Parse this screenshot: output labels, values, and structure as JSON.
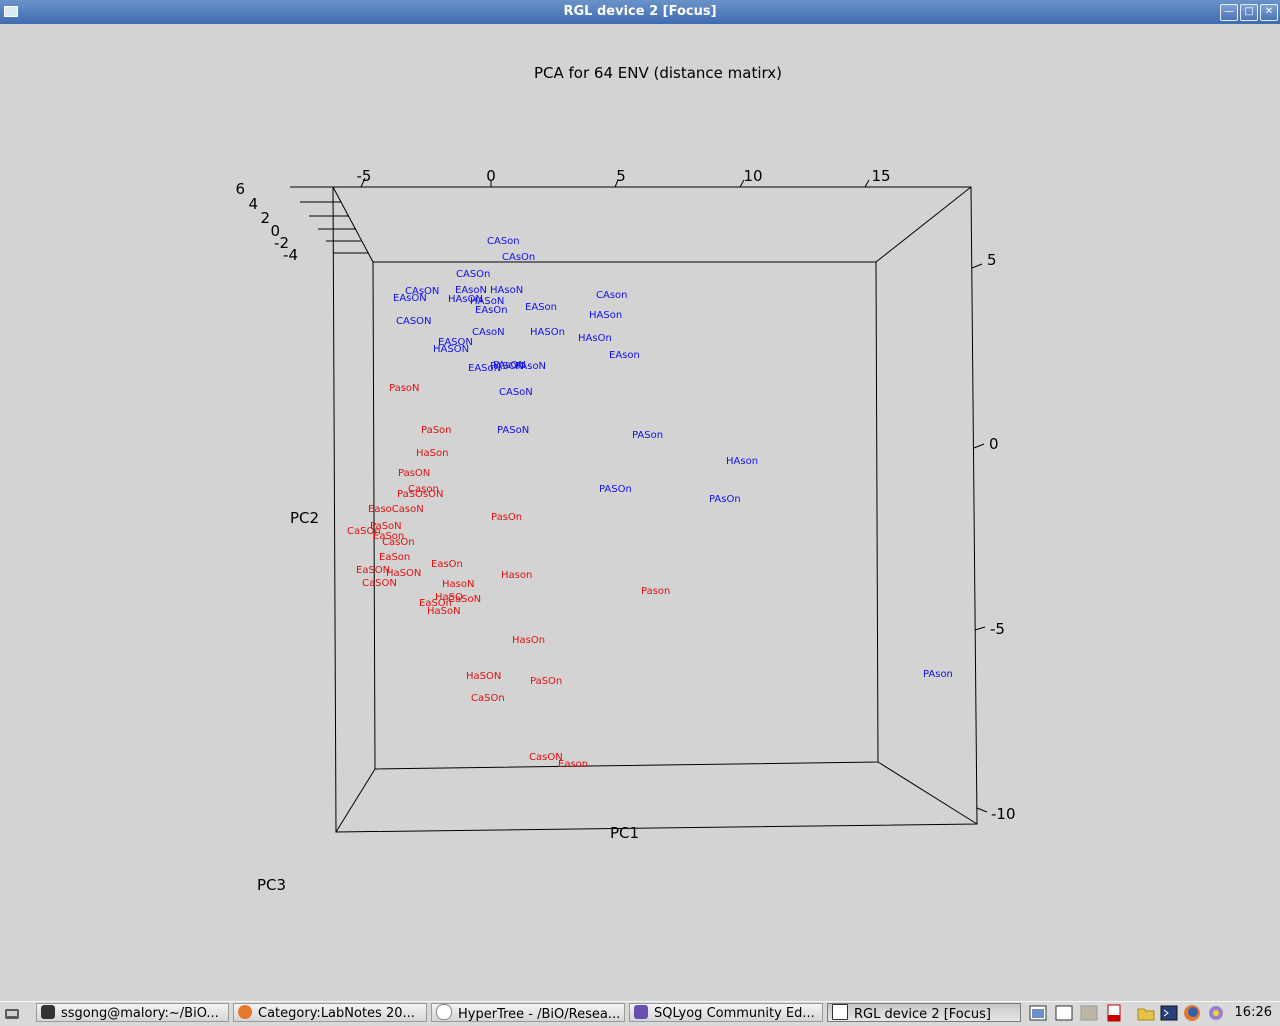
{
  "window": {
    "title": "RGL device 2 [Focus]",
    "controls": [
      "minimize-icon",
      "maximize-icon",
      "close-icon"
    ]
  },
  "plot": {
    "title": "PCA for 64 ENV (distance matirx)",
    "axes": {
      "x": "PC1",
      "y": "PC2",
      "z": "PC3"
    },
    "pc1_ticks": [
      "-5",
      "0",
      "5",
      "10",
      "15"
    ],
    "pc2_ticks": [
      "5",
      "0",
      "-5",
      "-10"
    ],
    "pc3_ticks": [
      "6",
      "4",
      "2",
      "0",
      "-2",
      "-4"
    ],
    "colors": {
      "blue": "#1010e8",
      "red": "#e01010"
    }
  },
  "chart_data": {
    "type": "scatter",
    "title": "PCA for 64 ENV (distance matirx)",
    "xlabel": "PC1",
    "ylabel": "PC2",
    "zlabel": "PC3",
    "series": [
      {
        "color": "blue",
        "points": [
          {
            "label": "CASon"
          },
          {
            "label": "CAsOn"
          },
          {
            "label": "CASOn"
          },
          {
            "label": "CAsON"
          },
          {
            "label": "EAsON"
          },
          {
            "label": "EAsoN"
          },
          {
            "label": "HAsoN"
          },
          {
            "label": "HAsON"
          },
          {
            "label": "HASoN"
          },
          {
            "label": "EAsOn"
          },
          {
            "label": "EASon"
          },
          {
            "label": "CAson"
          },
          {
            "label": "HASon"
          },
          {
            "label": "CASON"
          },
          {
            "label": "CAsoN"
          },
          {
            "label": "HASOn"
          },
          {
            "label": "HAsOn"
          },
          {
            "label": "EASON"
          },
          {
            "label": "HASON"
          },
          {
            "label": "EAson"
          },
          {
            "label": "PAsON"
          },
          {
            "label": "EASoN"
          },
          {
            "label": "PASON"
          },
          {
            "label": "PAsoN"
          },
          {
            "label": "CASoN"
          },
          {
            "label": "PASoN"
          },
          {
            "label": "PASon"
          },
          {
            "label": "HAson"
          },
          {
            "label": "PASOn"
          },
          {
            "label": "PAsOn"
          },
          {
            "label": "PAson"
          }
        ]
      },
      {
        "color": "red",
        "points": [
          {
            "label": "PasoN"
          },
          {
            "label": "PaSon"
          },
          {
            "label": "HaSon"
          },
          {
            "label": "PasON"
          },
          {
            "label": "Cason"
          },
          {
            "label": "PaSOsON"
          },
          {
            "label": "EasoCasoN"
          },
          {
            "label": "PasOn"
          },
          {
            "label": "PaSoN"
          },
          {
            "label": "CaSOn"
          },
          {
            "label": "EaSon"
          },
          {
            "label": "CasOn"
          },
          {
            "label": "EaSon"
          },
          {
            "label": "EasOn"
          },
          {
            "label": "EaSON"
          },
          {
            "label": "HaSON"
          },
          {
            "label": "Hason"
          },
          {
            "label": "CaSON"
          },
          {
            "label": "HasoN"
          },
          {
            "label": "HaSO"
          },
          {
            "label": "CaSoN"
          },
          {
            "label": "EaSOn"
          },
          {
            "label": "HaSoN"
          },
          {
            "label": "Pason"
          },
          {
            "label": "HasOn"
          },
          {
            "label": "HaSON"
          },
          {
            "label": "PaSOn"
          },
          {
            "label": "CaSOn"
          },
          {
            "label": "CasON"
          },
          {
            "label": "Eason"
          }
        ]
      }
    ]
  },
  "taskbar": {
    "tasks": [
      {
        "label": "ssgong@malory:~/BiO..."
      },
      {
        "label": "Category:LabNotes 20..."
      },
      {
        "label": "HyperTree - /BiO/Resea..."
      },
      {
        "label": "SQLyog Community Ed..."
      },
      {
        "label": "RGL device 2 [Focus]"
      }
    ],
    "clock": "16:26"
  }
}
